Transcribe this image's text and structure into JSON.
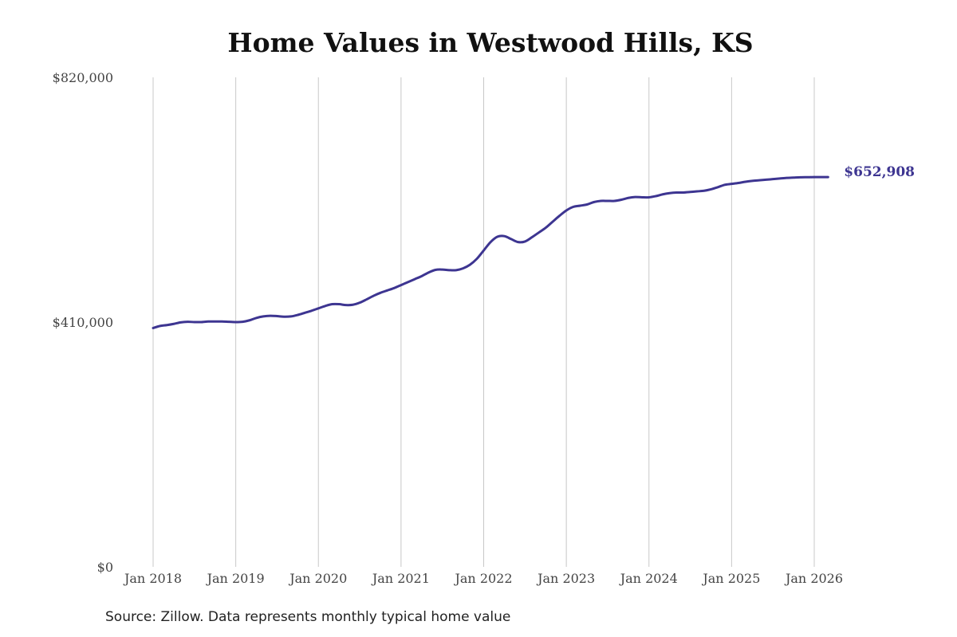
{
  "chart_data": {
    "type": "line",
    "title": "Home Values in Westwood Hills, KS",
    "xlabel": "",
    "ylabel": "",
    "ylim": [
      0,
      820000
    ],
    "y_ticks": [
      {
        "value": 0,
        "label": "$0"
      },
      {
        "value": 410000,
        "label": "$410,000"
      },
      {
        "value": 820000,
        "label": "$820,000"
      }
    ],
    "x_ticks": [
      {
        "value": 2018,
        "label": "Jan 2018"
      },
      {
        "value": 2019,
        "label": "Jan 2019"
      },
      {
        "value": 2020,
        "label": "Jan 2020"
      },
      {
        "value": 2021,
        "label": "Jan 2021"
      },
      {
        "value": 2022,
        "label": "Jan 2022"
      },
      {
        "value": 2023,
        "label": "Jan 2023"
      },
      {
        "value": 2024,
        "label": "Jan 2024"
      },
      {
        "value": 2025,
        "label": "Jan 2025"
      },
      {
        "value": 2026,
        "label": "Jan 2026"
      }
    ],
    "grid": "vertical",
    "line_color": "#3d3591",
    "end_label": "$652,908",
    "series": [
      {
        "name": "",
        "x": [
          2018.0,
          2018.083,
          2018.167,
          2018.25,
          2018.333,
          2018.417,
          2018.5,
          2018.583,
          2018.667,
          2018.75,
          2018.833,
          2018.917,
          2019.0,
          2019.083,
          2019.167,
          2019.25,
          2019.333,
          2019.417,
          2019.5,
          2019.583,
          2019.667,
          2019.75,
          2019.833,
          2019.917,
          2020.0,
          2020.083,
          2020.167,
          2020.25,
          2020.333,
          2020.417,
          2020.5,
          2020.583,
          2020.667,
          2020.75,
          2020.833,
          2020.917,
          2021.0,
          2021.083,
          2021.167,
          2021.25,
          2021.333,
          2021.417,
          2021.5,
          2021.583,
          2021.667,
          2021.75,
          2021.833,
          2021.917,
          2022.0,
          2022.083,
          2022.167,
          2022.25,
          2022.333,
          2022.417,
          2022.5,
          2022.583,
          2022.667,
          2022.75,
          2022.833,
          2022.917,
          2023.0,
          2023.083,
          2023.167,
          2023.25,
          2023.333,
          2023.417,
          2023.5,
          2023.583,
          2023.667,
          2023.75,
          2023.833,
          2023.917,
          2024.0,
          2024.083,
          2024.167,
          2024.25,
          2024.333,
          2024.417,
          2024.5,
          2024.583,
          2024.667,
          2024.75,
          2024.833,
          2024.917,
          2025.0,
          2025.083,
          2025.167,
          2025.25,
          2025.333,
          2025.417,
          2025.5,
          2025.583,
          2025.667,
          2025.75,
          2025.833,
          2025.917,
          2026.0,
          2026.083,
          2026.167
        ],
        "values": [
          400000,
          403500,
          405000,
          407000,
          409500,
          410500,
          410000,
          410000,
          411000,
          411000,
          411000,
          410500,
          410000,
          410500,
          413000,
          417000,
          419500,
          420500,
          420000,
          419000,
          419500,
          422000,
          425500,
          429000,
          433000,
          437000,
          440000,
          440000,
          438500,
          439000,
          442500,
          448000,
          454000,
          459000,
          463000,
          467000,
          472000,
          477000,
          482000,
          487000,
          493000,
          497500,
          498000,
          497000,
          497000,
          500000,
          506000,
          516000,
          530000,
          544000,
          553000,
          554000,
          549000,
          544000,
          545000,
          552000,
          560000,
          568000,
          578000,
          588000,
          597000,
          603000,
          605000,
          607000,
          611000,
          613000,
          613000,
          613000,
          615000,
          618000,
          619500,
          619000,
          619000,
          621000,
          624000,
          626000,
          627000,
          627000,
          628000,
          629000,
          630000,
          632500,
          636000,
          640000,
          641500,
          643000,
          645000,
          646500,
          647500,
          648500,
          649500,
          650500,
          651500,
          652000,
          652500,
          652700,
          652908,
          652908,
          652908
        ]
      }
    ]
  },
  "source_note": "Source: Zillow. Data represents monthly typical home value"
}
